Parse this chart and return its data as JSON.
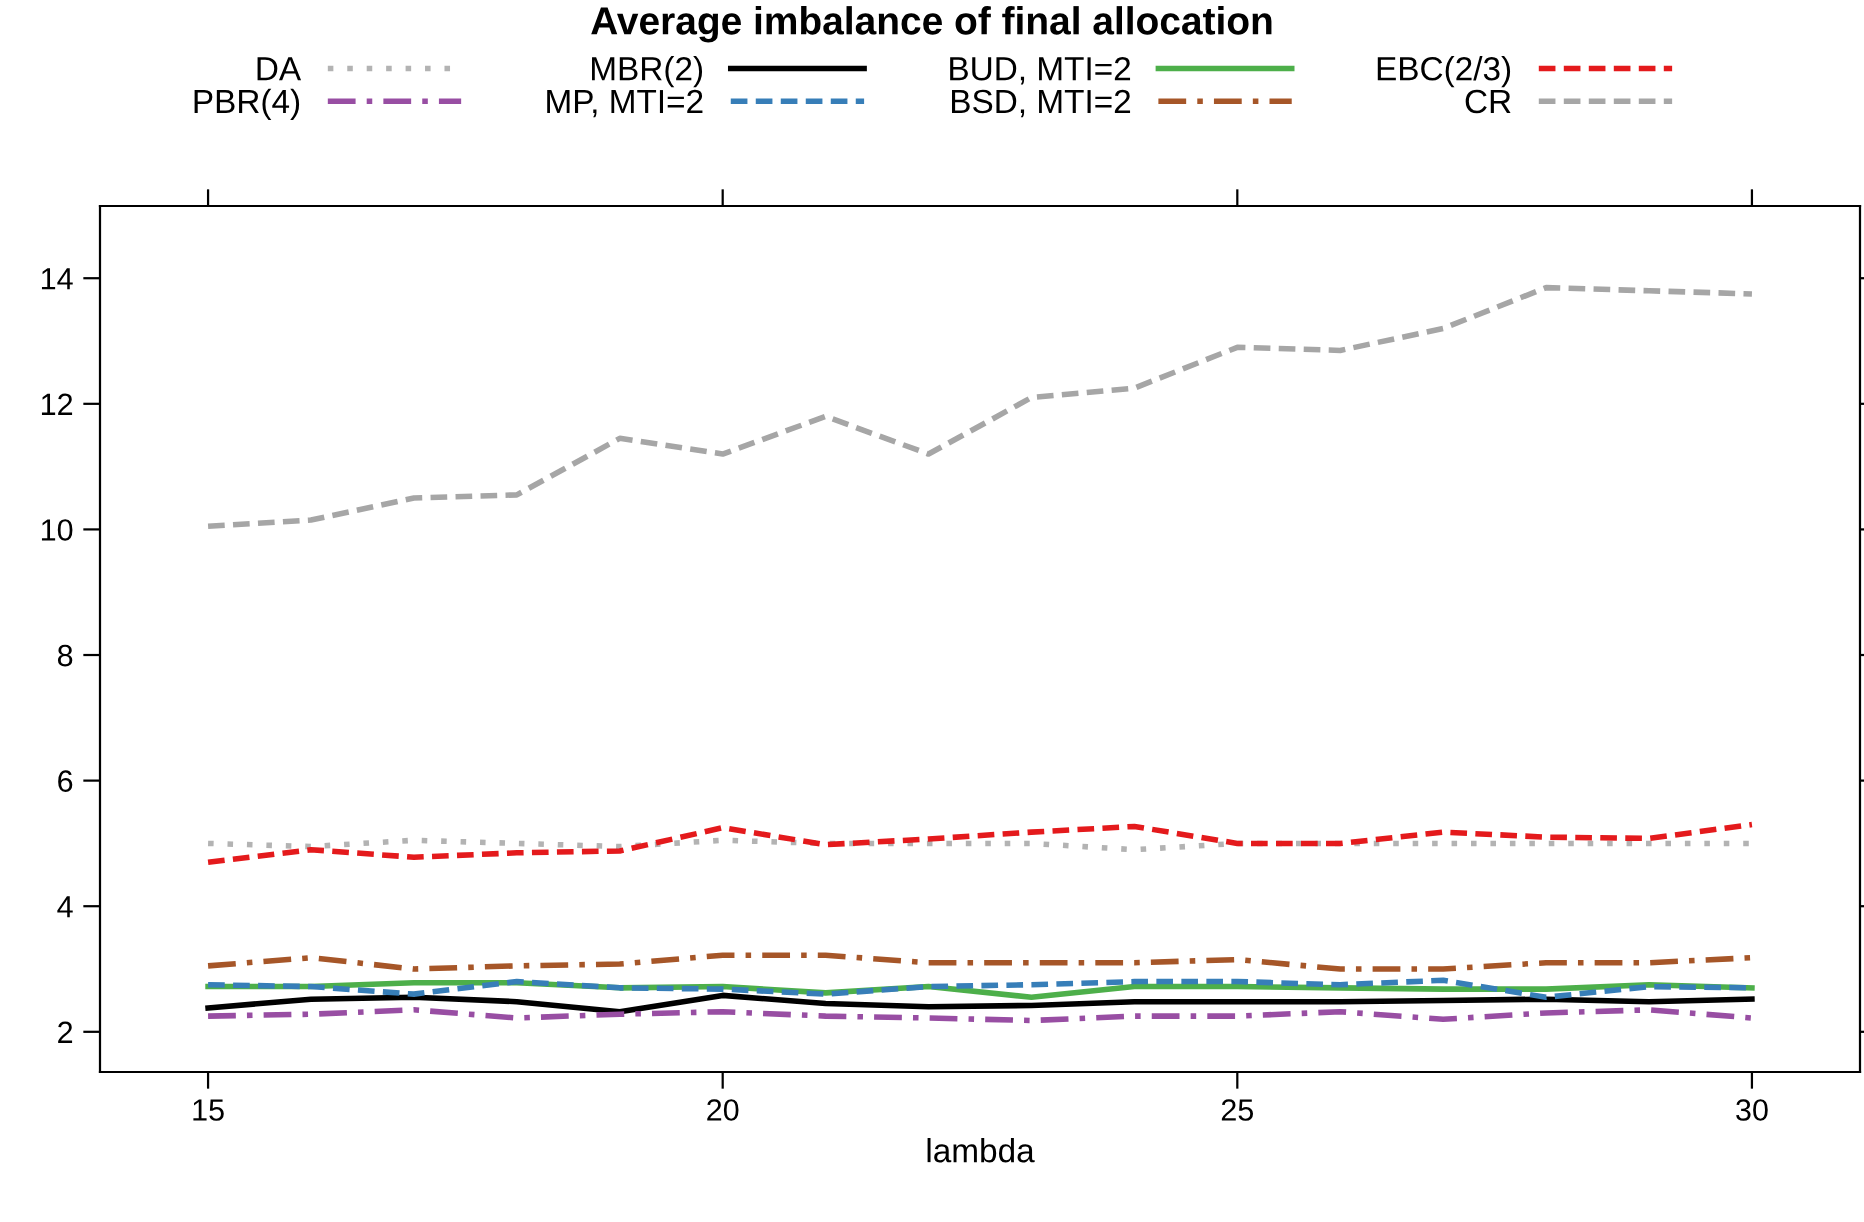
{
  "chart_data": {
    "type": "line",
    "title": "Average imbalance of final allocation",
    "xlabel": "lambda",
    "x": [
      15,
      16,
      17,
      18,
      19,
      20,
      21,
      22,
      23,
      24,
      25,
      26,
      27,
      28,
      29,
      30
    ],
    "xlim": [
      13.95,
      31.05
    ],
    "xticks": [
      15,
      20,
      25,
      30
    ],
    "ylim": [
      1.36,
      15.15
    ],
    "yticks": [
      2,
      4,
      6,
      8,
      10,
      12,
      14
    ],
    "grid": false,
    "legend": "top",
    "marker": "none",
    "series": [
      {
        "name": "DA",
        "color": "#b3b3b3",
        "line_style": "dotted",
        "values": [
          5.0,
          4.95,
          5.05,
          5.0,
          4.95,
          5.05,
          5.0,
          5.0,
          5.0,
          4.9,
          5.0,
          5.0,
          5.0,
          5.0,
          5.0,
          5.0
        ]
      },
      {
        "name": "PBR(4)",
        "color": "#984ea3",
        "line_style": "dashdot",
        "values": [
          2.25,
          2.28,
          2.35,
          2.22,
          2.28,
          2.32,
          2.25,
          2.22,
          2.18,
          2.25,
          2.25,
          2.32,
          2.2,
          2.3,
          2.35,
          2.22
        ]
      },
      {
        "name": "MBR(2)",
        "color": "#000000",
        "line_style": "solid",
        "values": [
          2.38,
          2.52,
          2.55,
          2.48,
          2.32,
          2.58,
          2.45,
          2.4,
          2.42,
          2.48,
          2.48,
          2.48,
          2.5,
          2.52,
          2.48,
          2.52
        ]
      },
      {
        "name": "MP, MTI=2",
        "color": "#377eb8",
        "line_style": "dashed",
        "values": [
          2.75,
          2.72,
          2.6,
          2.8,
          2.7,
          2.68,
          2.6,
          2.72,
          2.75,
          2.8,
          2.8,
          2.75,
          2.82,
          2.55,
          2.72,
          2.7
        ]
      },
      {
        "name": "BUD, MTI=2",
        "color": "#4daf4a",
        "line_style": "solid",
        "values": [
          2.72,
          2.72,
          2.78,
          2.78,
          2.7,
          2.72,
          2.62,
          2.72,
          2.55,
          2.72,
          2.72,
          2.7,
          2.68,
          2.68,
          2.75,
          2.7
        ]
      },
      {
        "name": "BSD, MTI=2",
        "color": "#a65628",
        "line_style": "dashdot",
        "values": [
          3.05,
          3.18,
          3.0,
          3.05,
          3.08,
          3.22,
          3.22,
          3.1,
          3.1,
          3.1,
          3.15,
          3.0,
          3.0,
          3.1,
          3.1,
          3.18
        ]
      },
      {
        "name": "EBC(2/3)",
        "color": "#e41a1c",
        "line_style": "dashed",
        "values": [
          4.7,
          4.9,
          4.78,
          4.85,
          4.88,
          5.25,
          4.98,
          5.07,
          5.18,
          5.27,
          5.0,
          5.0,
          5.18,
          5.1,
          5.08,
          5.3
        ]
      },
      {
        "name": "CR",
        "color": "#a6a6a6",
        "line_style": "dashed",
        "values": [
          10.05,
          10.15,
          10.5,
          10.55,
          11.45,
          11.2,
          11.8,
          11.2,
          12.1,
          12.25,
          12.9,
          12.85,
          13.2,
          13.85,
          13.8,
          13.75
        ]
      }
    ]
  }
}
